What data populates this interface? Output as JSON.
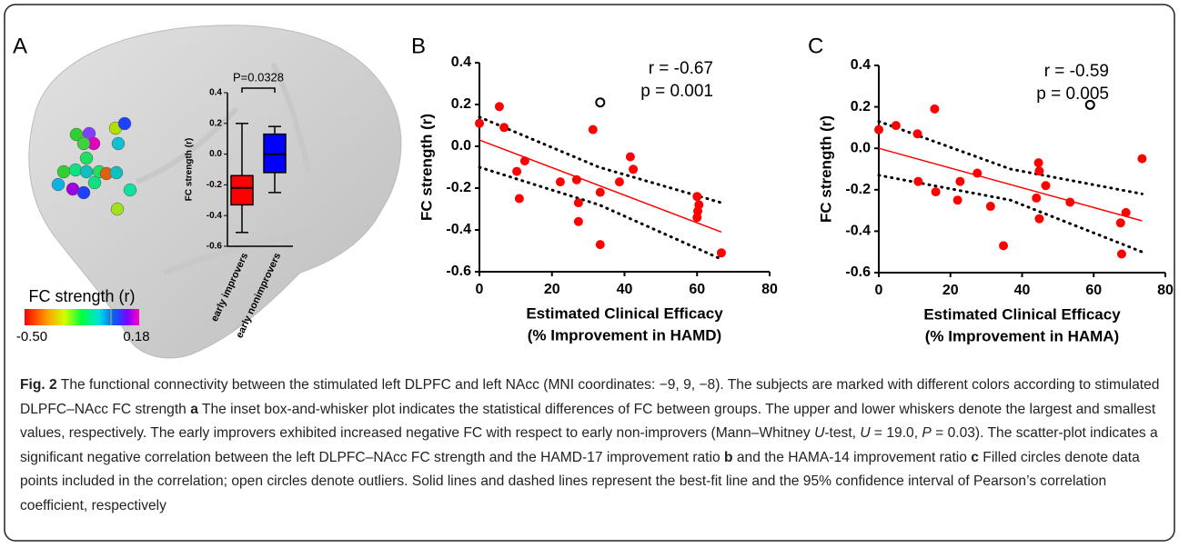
{
  "caption": {
    "label": "Fig. 2",
    "parts": [
      "The functional connectivity between the stimulated left DLPFC and left NAcc (MNI coordinates: −9, 9, −8). The subjects are marked with different colors according to stimulated DLPFC–NAcc FC strength ",
      "a",
      " The inset box-and-whisker plot indicates the statistical differences of FC between groups. The upper and lower whiskers denote the largest and smallest values, respectively. The early improvers exhibited increased negative FC with respect to early non-improvers (Mann–Whitney ",
      "U",
      "-test, ",
      "U",
      " = 19.0, ",
      "P",
      " = 0.03). The scatter-plot indicates a significant negative correlation between the left DLPFC–NAcc FC strength and the HAMD-17 improvement ratio ",
      "b",
      " and the HAMA-14 improvement ratio ",
      "c",
      " Filled circles denote data points included in the correlation; open circles denote outliers. Solid lines and dashed lines represent the best-fit line and the 95% confidence interval of Pearson’s correlation coefficient, respectively"
    ]
  },
  "chart_data": [
    {
      "type": "box",
      "panel": "A",
      "ylabel": "FC strength (r)",
      "categories": [
        "early improvers",
        "early nonimprovers"
      ],
      "boxes": [
        {
          "min": -0.51,
          "q1": -0.33,
          "median": -0.22,
          "q3": -0.14,
          "max": 0.2,
          "color": "#ff0000"
        },
        {
          "min": -0.25,
          "q1": -0.12,
          "median": 0,
          "q3": 0.13,
          "max": 0.18,
          "color": "#0000ff"
        }
      ],
      "ylim": [
        -0.6,
        0.4
      ],
      "yticks": [
        -0.6,
        -0.4,
        -0.2,
        {
          "value": 0,
          "label": "0.0"
        },
        0.2,
        0.4
      ],
      "annotation": "P=0.0328",
      "colorbar": {
        "title": "FC strength (r)",
        "ticks": [
          {
            "value": -0.5,
            "label": "-0.50"
          },
          0.18
        ]
      }
    },
    {
      "type": "scatter",
      "panel": "B",
      "ylabel": "FC strength (r)",
      "xlabel": [
        "Estimated Clinical Efficacy",
        "(% Improvement in HAMD)"
      ],
      "annotations": [
        "r = -0.67",
        "p = 0.001"
      ],
      "color": "#ff0000",
      "x": [
        0,
        5.5,
        6.8,
        10.3,
        12.5,
        11,
        22.3,
        26.8,
        27.3,
        27.3,
        31.3,
        33.3,
        33.3,
        38.6,
        41.6,
        42.4,
        60,
        60.5,
        60.2,
        60,
        66.7
      ],
      "y": [
        0.11,
        0.19,
        0.09,
        -0.12,
        -0.07,
        -0.25,
        -0.17,
        -0.16,
        -0.27,
        -0.36,
        0.08,
        -0.22,
        -0.47,
        -0.17,
        -0.05,
        -0.11,
        -0.24,
        -0.28,
        -0.31,
        -0.34,
        -0.51
      ],
      "outlier_x": [
        33.3
      ],
      "outlier_y": [
        0.21
      ],
      "fit": {
        "x": [
          0,
          66.7
        ],
        "y": [
          0.03,
          -0.41
        ]
      },
      "ci_upper": {
        "x": [
          0,
          33,
          66.7
        ],
        "y": [
          0.14,
          -0.1,
          -0.27
        ]
      },
      "ci_lower": {
        "x": [
          0,
          33,
          66.7
        ],
        "y": [
          -0.1,
          -0.28,
          -0.54
        ]
      },
      "xlim": [
        0,
        80
      ],
      "xticks": [
        0,
        20,
        40,
        60,
        80
      ],
      "ylim": [
        -0.6,
        0.4
      ],
      "yticks": [
        -0.6,
        -0.4,
        -0.2,
        {
          "value": 0,
          "label": "0.0"
        },
        0.2,
        0.4
      ]
    },
    {
      "type": "scatter",
      "panel": "C",
      "ylabel": "FC strength (r)",
      "xlabel": [
        "Estimated Clinical Efficacy",
        "(% Improvement in HAMA)"
      ],
      "annotations": [
        "r = -0.59",
        "p = 0.005"
      ],
      "color": "#ff0000",
      "x": [
        0,
        4.8,
        15.6,
        10.8,
        11,
        15.9,
        22,
        22.7,
        27.5,
        31.2,
        34.8,
        44.6,
        44.8,
        44,
        46.6,
        44.8,
        53.4,
        67.5,
        69,
        67.8,
        73.5
      ],
      "y": [
        0.09,
        0.11,
        0.19,
        0.07,
        -0.16,
        -0.21,
        -0.25,
        -0.16,
        -0.12,
        -0.28,
        -0.47,
        -0.07,
        -0.11,
        -0.24,
        -0.18,
        -0.34,
        -0.26,
        -0.36,
        -0.31,
        -0.51,
        -0.05
      ],
      "outlier_x": [
        59
      ],
      "outlier_y": [
        0.21
      ],
      "fit": {
        "x": [
          0,
          73.5
        ],
        "y": [
          0,
          -0.35
        ]
      },
      "ci_upper": {
        "x": [
          0,
          36.75,
          73.5
        ],
        "y": [
          0.13,
          -0.1,
          -0.22
        ]
      },
      "ci_lower": {
        "x": [
          0,
          36.75,
          73.5
        ],
        "y": [
          -0.13,
          -0.25,
          -0.5
        ]
      },
      "xlim": [
        0,
        80
      ],
      "xticks": [
        0,
        20,
        40,
        60,
        80
      ],
      "ylim": [
        -0.6,
        0.4
      ],
      "yticks": [
        -0.6,
        -0.4,
        -0.2,
        {
          "value": 0,
          "label": "0.0"
        },
        0.2,
        0.4
      ]
    }
  ]
}
